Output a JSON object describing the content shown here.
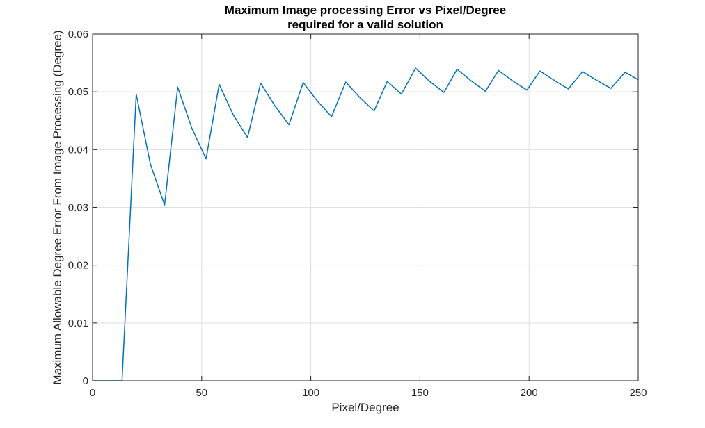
{
  "chart_data": {
    "type": "line",
    "title": [
      "Maximum Image processing Error vs Pixel/Degree",
      "required for a valid solution"
    ],
    "xlabel": "Pixel/Degree",
    "ylabel": "Maximum Allowable Degree Error From Image Processing (Degree)",
    "xlim": [
      0,
      250
    ],
    "ylim": [
      0,
      0.06
    ],
    "xticks": [
      0,
      50,
      100,
      150,
      200,
      250
    ],
    "xtick_labels": [
      "0",
      "50",
      "100",
      "150",
      "200",
      "250"
    ],
    "yticks": [
      0,
      0.01,
      0.02,
      0.03,
      0.04,
      0.05,
      0.06
    ],
    "ytick_labels": [
      "0",
      "0.01",
      "0.02",
      "0.03",
      "0.04",
      "0.05",
      "0.06"
    ],
    "grid": true,
    "series": [
      {
        "color": "#0072BD",
        "x": [
          0,
          13.5,
          20,
          26.5,
          33,
          39,
          45.5,
          52,
          58,
          64.5,
          71,
          77,
          83.5,
          90,
          96.5,
          103,
          109.5,
          116,
          122.5,
          129,
          135,
          141.5,
          148,
          154.5,
          161,
          167,
          173.5,
          180,
          186,
          192.5,
          199,
          205,
          211.5,
          218,
          224.5,
          231,
          237.5,
          244,
          250
        ],
        "y": [
          0,
          0,
          0.0496,
          0.0375,
          0.0304,
          0.0508,
          0.0437,
          0.0384,
          0.0513,
          0.046,
          0.0421,
          0.0515,
          0.0476,
          0.0443,
          0.0516,
          0.0484,
          0.0457,
          0.0517,
          0.049,
          0.0467,
          0.0518,
          0.0496,
          0.0541,
          0.0518,
          0.0499,
          0.0539,
          0.0519,
          0.0501,
          0.0537,
          0.0519,
          0.0503,
          0.0536,
          0.052,
          0.0505,
          0.0535,
          0.052,
          0.0506,
          0.0534,
          0.0521
        ]
      }
    ]
  }
}
